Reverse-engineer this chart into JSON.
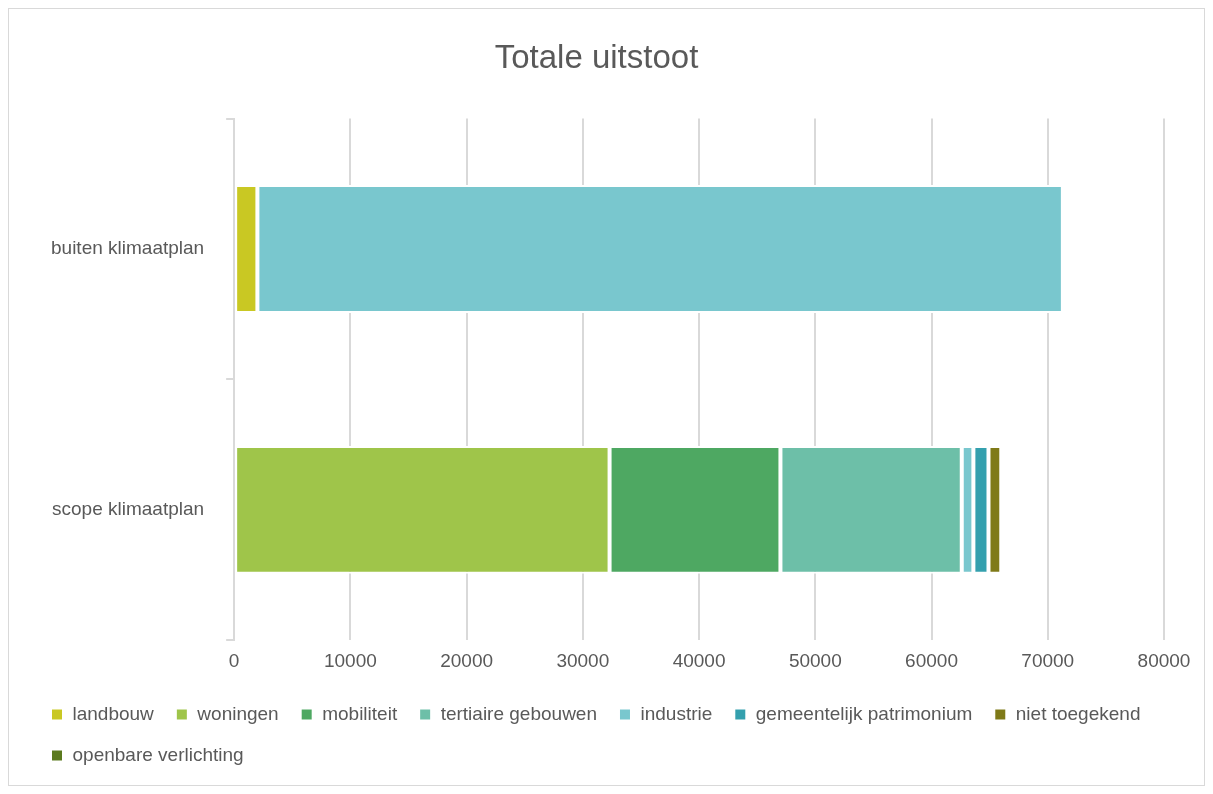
{
  "chart_data": {
    "type": "bar",
    "title": "Totale uitstoot",
    "orientation": "horizontal",
    "stacked": true,
    "categories": [
      "buiten klimaatplan",
      "scope klimaatplan"
    ],
    "series": [
      {
        "name": "landbouw",
        "color": "#c9c823",
        "values": [
          2000,
          null
        ]
      },
      {
        "name": "woningen",
        "color": "#9fc54a",
        "values": [
          null,
          32300
        ]
      },
      {
        "name": "mobiliteit",
        "color": "#4ea862",
        "values": [
          null,
          14700
        ]
      },
      {
        "name": "tertiaire gebouwen",
        "color": "#6dbfa8",
        "values": [
          null,
          15600
        ]
      },
      {
        "name": "industrie",
        "color": "#79c7ce",
        "values": [
          69300,
          1000
        ]
      },
      {
        "name": "gemeentelijk patrimonium",
        "color": "#34a0ae",
        "values": [
          null,
          1300
        ]
      },
      {
        "name": "niet toegekend",
        "color": "#7f7a18",
        "values": [
          null,
          1100
        ]
      },
      {
        "name": "openbare verlichting",
        "color": "#5b7a1e",
        "values": [
          null,
          null
        ]
      }
    ],
    "xlim": [
      0,
      80000
    ],
    "xticks": [
      0,
      10000,
      20000,
      30000,
      40000,
      50000,
      60000,
      70000,
      80000
    ],
    "grid": "x",
    "legend": "bottom"
  }
}
